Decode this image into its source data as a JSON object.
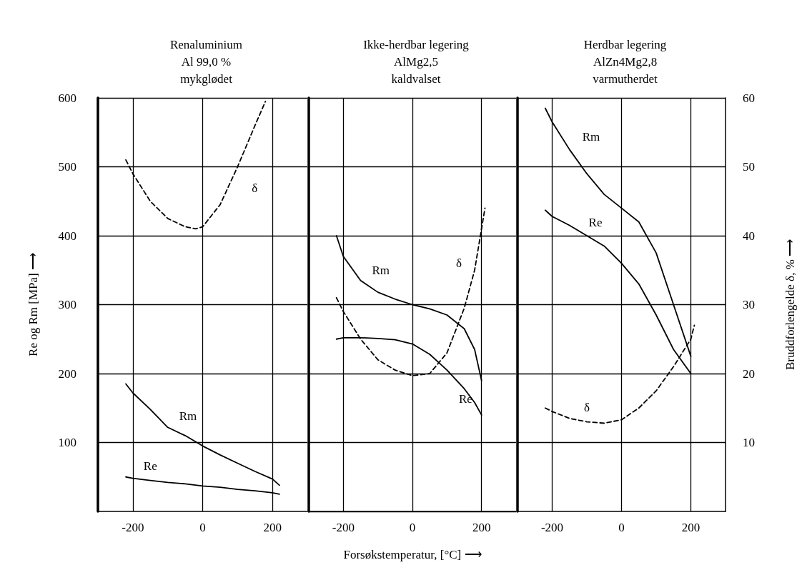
{
  "chart_data": [
    {
      "type": "line",
      "title": "Renaluminium\nAl 99,0 %\nmykglødet",
      "ylabel": "Re og Rm [MPa] ⟶",
      "xlim": [
        -300,
        300
      ],
      "xticks": [
        -200,
        0,
        200
      ],
      "ylim": [
        0,
        600
      ],
      "yticks": [
        100,
        200,
        300,
        400,
        500,
        600
      ],
      "y2lim": [
        0,
        60
      ],
      "grid": true,
      "legend": false,
      "marker": "none",
      "tick_labels": [
        "x",
        "y"
      ],
      "x": [
        -220,
        -200,
        -150,
        -100,
        -50,
        0,
        50,
        100,
        150,
        200,
        220
      ],
      "series": [
        {
          "name": "Rm",
          "color": "#000000",
          "line_style": "solid",
          "values": [
            185,
            172,
            148,
            122,
            110,
            95,
            82,
            70,
            58,
            47,
            38
          ]
        },
        {
          "name": "Re",
          "color": "#000000",
          "line_style": "solid",
          "values": [
            50,
            48,
            45,
            42,
            40,
            37,
            35,
            32,
            30,
            27,
            25
          ]
        },
        {
          "name": "δ",
          "color": "#000000",
          "line_style": "dashed",
          "axis": "y2",
          "x": [
            -220,
            -200,
            -150,
            -100,
            -50,
            -20,
            0,
            50,
            100,
            150,
            180
          ],
          "values": [
            51,
            49,
            45,
            42.5,
            41.3,
            41,
            41.3,
            44.5,
            50,
            56,
            59.5
          ]
        }
      ]
    },
    {
      "type": "line",
      "title": "Ikke-herdbar legering\nAlMg2,5\nkaldvalset",
      "xlabel": "Forsøkstemperatur, [°C] ⟶",
      "xlim": [
        -300,
        300
      ],
      "xticks": [
        -200,
        0,
        200
      ],
      "ylim": [
        0,
        600
      ],
      "y2lim": [
        0,
        60
      ],
      "grid": true,
      "legend": false,
      "marker": "none",
      "tick_labels": [
        "x"
      ],
      "x": [
        -220,
        -200,
        -150,
        -100,
        -50,
        0,
        50,
        100,
        150,
        180,
        200
      ],
      "series": [
        {
          "name": "Rm",
          "color": "#000000",
          "line_style": "solid",
          "values": [
            400,
            370,
            335,
            318,
            308,
            300,
            294,
            285,
            265,
            235,
            190
          ]
        },
        {
          "name": "Re",
          "color": "#000000",
          "line_style": "solid",
          "values": [
            250,
            252,
            252,
            251,
            249,
            243,
            228,
            205,
            178,
            158,
            140
          ]
        },
        {
          "name": "δ",
          "color": "#000000",
          "line_style": "dashed",
          "axis": "y2",
          "x": [
            -220,
            -200,
            -150,
            -100,
            -50,
            0,
            50,
            100,
            150,
            180,
            210
          ],
          "values": [
            31,
            29,
            25,
            22,
            20.5,
            19.7,
            20,
            23,
            29.5,
            35,
            44
          ]
        }
      ]
    },
    {
      "type": "line",
      "title": "Herdbar legering\nAlZn4Mg2,8\nvarmutherdet",
      "y2label": "Bruddforlengelde δ, % ⟶",
      "xlim": [
        -300,
        300
      ],
      "xticks": [
        -200,
        0,
        200
      ],
      "ylim": [
        0,
        600
      ],
      "y2lim": [
        0,
        60
      ],
      "y2ticks": [
        10,
        20,
        30,
        40,
        50,
        60
      ],
      "grid": true,
      "legend": false,
      "marker": "none",
      "tick_labels": [
        "x",
        "y2"
      ],
      "x": [
        -220,
        -200,
        -150,
        -100,
        -50,
        0,
        50,
        100,
        150,
        200
      ],
      "series": [
        {
          "name": "Rm",
          "color": "#000000",
          "line_style": "solid",
          "values": [
            585,
            565,
            525,
            490,
            460,
            440,
            420,
            375,
            300,
            225
          ]
        },
        {
          "name": "Re",
          "color": "#000000",
          "line_style": "solid",
          "values": [
            437,
            428,
            415,
            400,
            385,
            360,
            330,
            285,
            235,
            200
          ]
        },
        {
          "name": "δ",
          "color": "#000000",
          "line_style": "dashed",
          "axis": "y2",
          "x": [
            -220,
            -200,
            -150,
            -100,
            -50,
            0,
            50,
            100,
            150,
            200,
            210
          ],
          "values": [
            15,
            14.5,
            13.5,
            13,
            12.8,
            13.3,
            15,
            17.5,
            21,
            25,
            27
          ]
        }
      ]
    }
  ]
}
